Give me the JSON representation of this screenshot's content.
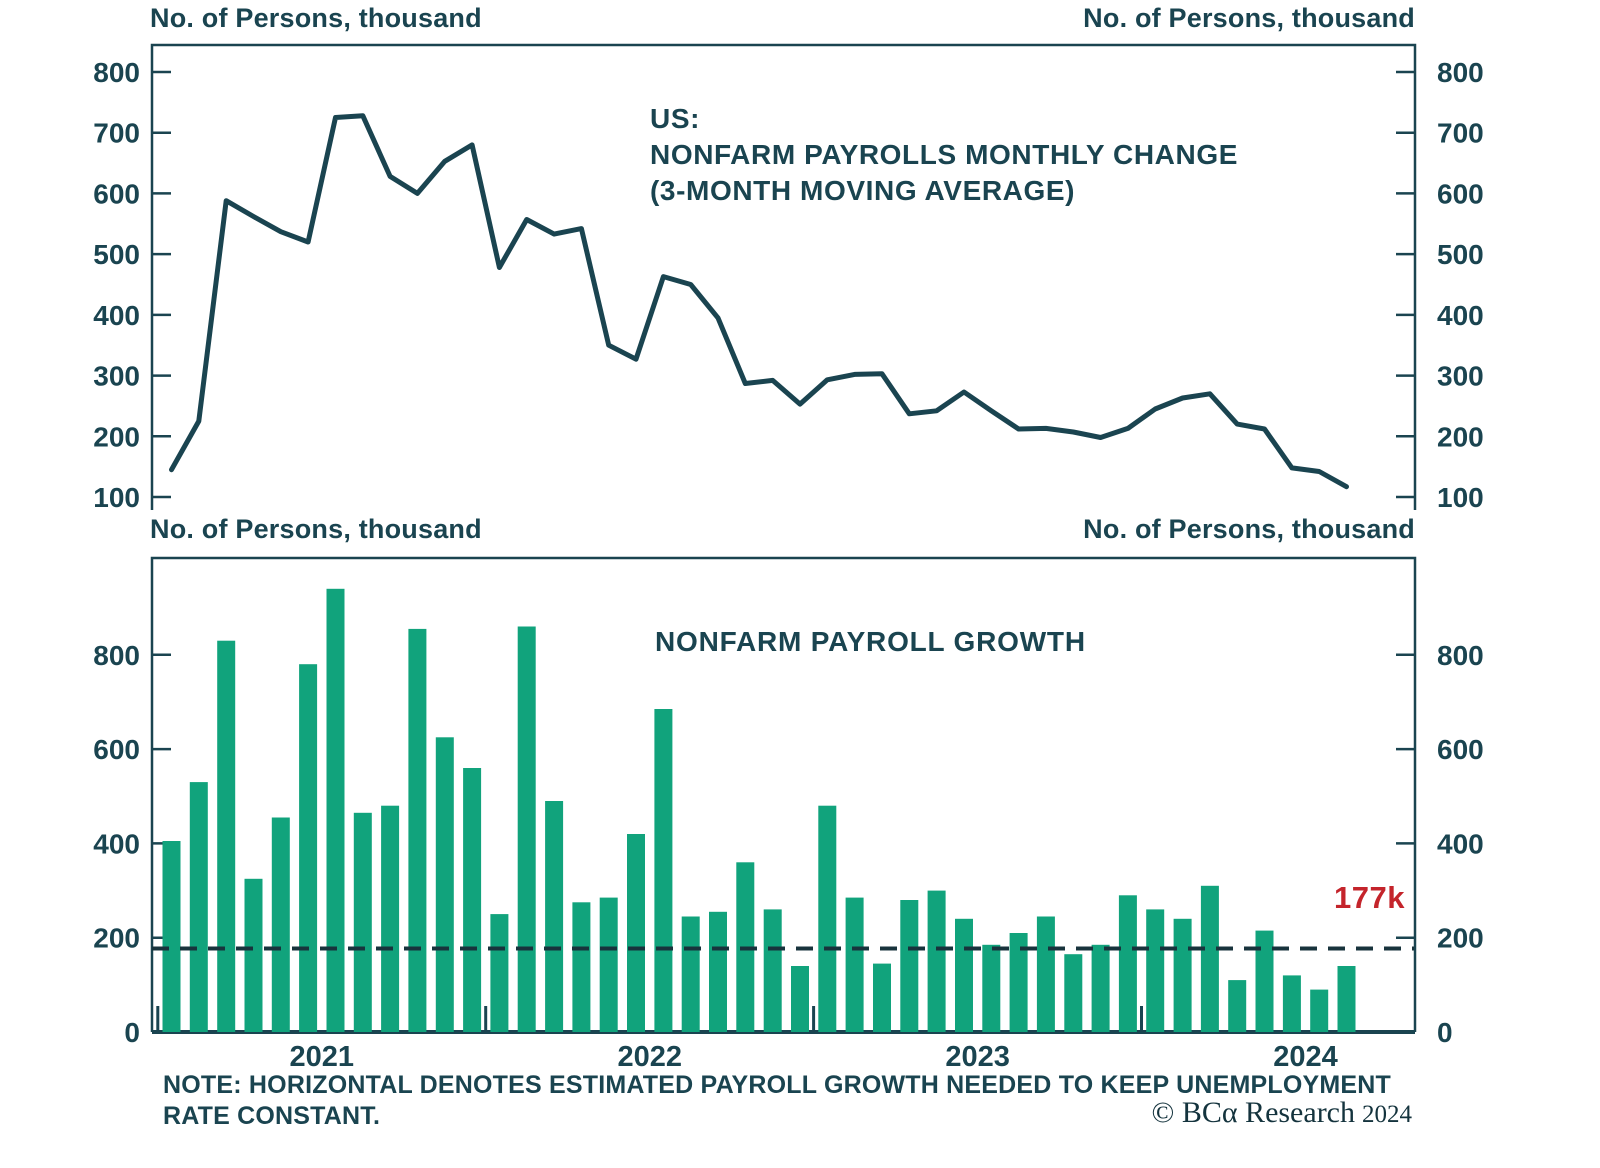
{
  "colors": {
    "ink": "#1A4450",
    "bar_green": "#11A37C",
    "threshold_dash": "#18333C",
    "threshold_red": "#C4242B",
    "background": "#FFFFFF"
  },
  "chart_data": [
    {
      "type": "line",
      "title_lines": [
        "US:",
        "NONFARM PAYROLLS MONTHLY CHANGE",
        "(3-MONTH MOVING AVERAGE)"
      ],
      "ylabel_left": "No. of Persons, thousand",
      "ylabel_right": "No. of Persons, thousand",
      "y_ticks": [
        800,
        700,
        600,
        500,
        400,
        300,
        200,
        100
      ],
      "ylim": [
        100,
        800
      ],
      "periodicity": "monthly",
      "x_range_years": [
        "2021",
        "2022",
        "2023",
        "2024"
      ],
      "values": [
        145,
        225,
        588,
        562,
        537,
        520,
        725,
        728,
        628,
        600,
        653,
        680,
        478,
        557,
        533,
        542,
        350,
        327,
        463,
        450,
        395,
        287,
        292,
        253,
        293,
        302,
        303,
        237,
        242,
        273,
        242,
        212,
        213,
        207,
        198,
        213,
        245,
        263,
        270,
        220,
        212,
        148,
        142,
        117
      ],
      "line_color": "#1A4450",
      "grid": false,
      "legend": "none"
    },
    {
      "type": "bar",
      "title": "NONFARM PAYROLL GROWTH",
      "ylabel_left": "No. of Persons, thousand",
      "ylabel_right": "No. of Persons, thousand",
      "y_ticks": [
        800,
        600,
        400,
        200,
        0
      ],
      "ylim": [
        0,
        1000
      ],
      "periodicity": "monthly",
      "x_tick_labels": [
        "2021",
        "2022",
        "2023",
        "2024"
      ],
      "values": [
        405,
        530,
        830,
        325,
        455,
        780,
        940,
        465,
        480,
        855,
        625,
        560,
        250,
        860,
        490,
        275,
        285,
        420,
        685,
        245,
        255,
        360,
        260,
        140,
        480,
        285,
        145,
        280,
        300,
        240,
        185,
        210,
        245,
        165,
        185,
        290,
        260,
        240,
        310,
        110,
        215,
        120,
        90,
        140
      ],
      "bar_color": "#11A37C",
      "threshold": {
        "value": 177,
        "label": "177k",
        "label_color": "#C4242B",
        "line_color": "#18333C",
        "line_style": "dashed"
      },
      "grid": false,
      "legend": "none"
    }
  ],
  "note": {
    "line1": "NOTE: HORIZONTAL DENOTES ESTIMATED PAYROLL GROWTH NEEDED TO KEEP UNEMPLOYMENT",
    "line2": "RATE CONSTANT."
  },
  "copyright": {
    "text": "© BCα Research",
    "year": "2024"
  }
}
